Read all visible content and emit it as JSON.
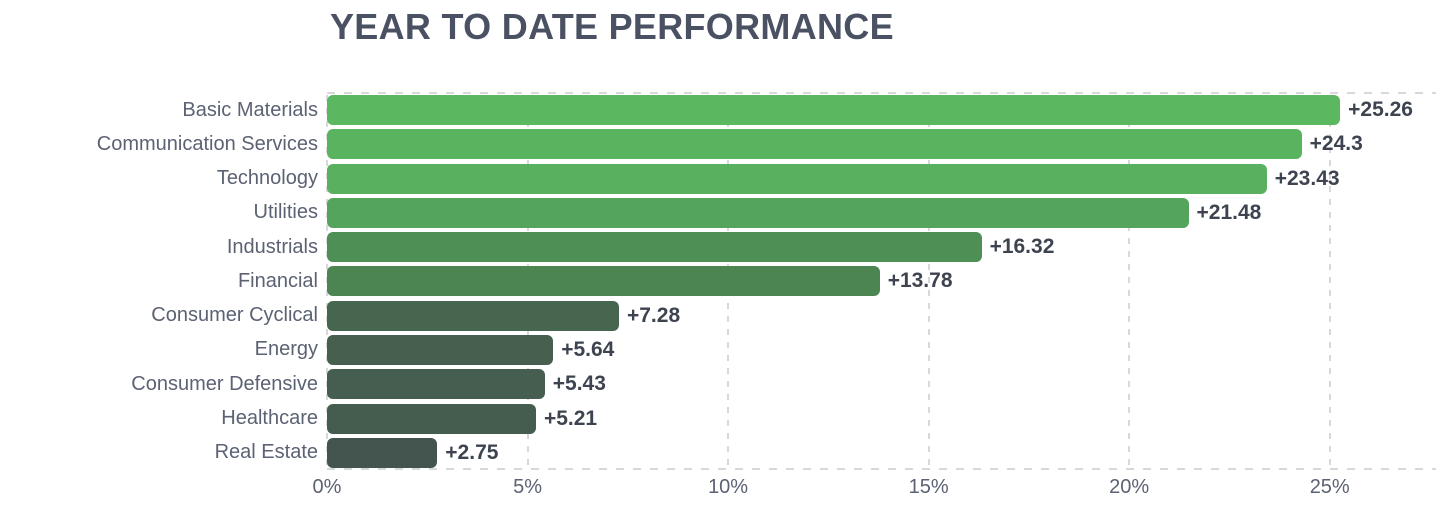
{
  "chart_data": {
    "type": "bar",
    "orientation": "horizontal",
    "title": "YEAR TO DATE PERFORMANCE",
    "categories": [
      "Basic Materials",
      "Communication Services",
      "Technology",
      "Utilities",
      "Industrials",
      "Financial",
      "Consumer Cyclical",
      "Energy",
      "Consumer Defensive",
      "Healthcare",
      "Real Estate"
    ],
    "values": [
      25.26,
      24.3,
      23.43,
      21.48,
      16.32,
      13.78,
      7.28,
      5.64,
      5.43,
      5.21,
      2.75
    ],
    "value_labels": [
      "+25.26",
      "+24.3",
      "+23.43",
      "+21.48",
      "+16.32",
      "+13.78",
      "+7.28",
      "+5.64",
      "+5.43",
      "+5.21",
      "+2.75"
    ],
    "bar_colors": [
      "#5cb860",
      "#5ab45f",
      "#59b05e",
      "#54a55b",
      "#4d8f55",
      "#4c8552",
      "#47664f",
      "#465f4f",
      "#465e4f",
      "#455d4e",
      "#44544e"
    ],
    "x_ticks": [
      {
        "label": "0%",
        "value": 0
      },
      {
        "label": "5%",
        "value": 5
      },
      {
        "label": "10%",
        "value": 10
      },
      {
        "label": "15%",
        "value": 15
      },
      {
        "label": "20%",
        "value": 20
      },
      {
        "label": "25%",
        "value": 25
      }
    ],
    "xlim": [
      0,
      27.65
    ],
    "grid": "vertical-dashed",
    "legend": "none"
  },
  "colors": {
    "background": "#ffffff",
    "title_text": "#4a5162",
    "category_text": "#5b6273",
    "value_text": "#3d4450",
    "gridline": "#d7d8dc"
  }
}
